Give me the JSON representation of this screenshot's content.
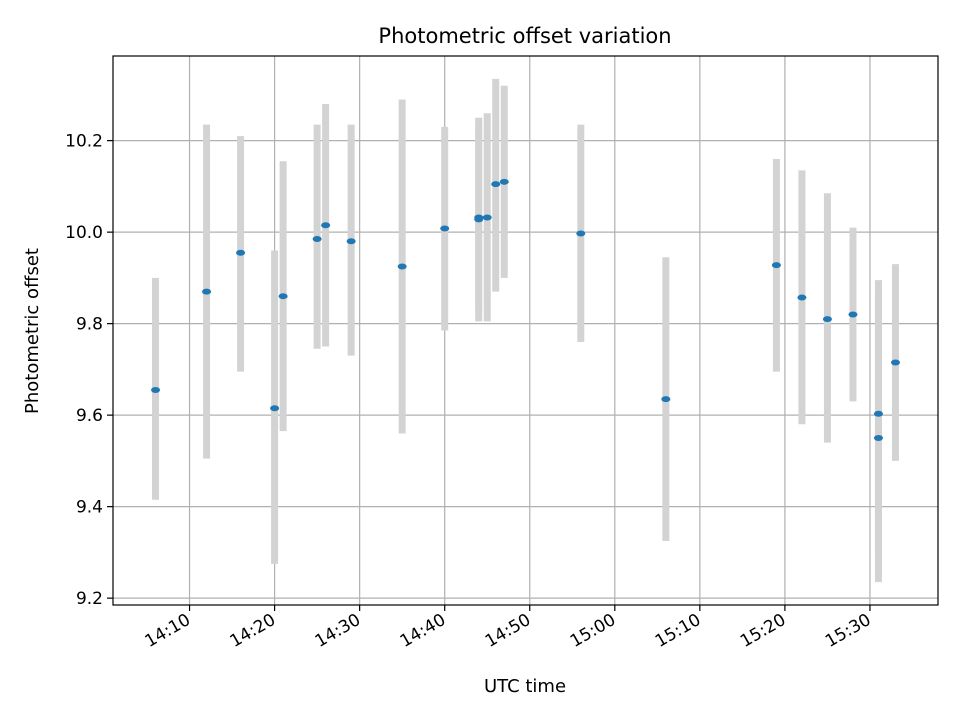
{
  "chart_data": {
    "type": "scatter",
    "title": "Photometric offset variation",
    "xlabel": "UTC time",
    "ylabel": "Photometric offset",
    "grid": true,
    "xlim": [
      "14:01",
      "15:38"
    ],
    "ylim": [
      9.185,
      10.385
    ],
    "x_ticks": [
      "14:10",
      "14:20",
      "14:30",
      "14:40",
      "14:50",
      "15:00",
      "15:10",
      "15:20",
      "15:30"
    ],
    "y_ticks": [
      "9.2",
      "9.4",
      "9.6",
      "9.8",
      "10.0",
      "10.2"
    ],
    "marker_color": "#1f77b4",
    "errorbar_color": "#d3d3d3",
    "points": [
      {
        "x": "14:06",
        "y": 9.655,
        "lo": 9.415,
        "hi": 9.9
      },
      {
        "x": "14:12",
        "y": 9.87,
        "lo": 9.505,
        "hi": 10.235
      },
      {
        "x": "14:16",
        "y": 9.955,
        "lo": 9.695,
        "hi": 10.21
      },
      {
        "x": "14:20",
        "y": 9.615,
        "lo": 9.275,
        "hi": 9.96
      },
      {
        "x": "14:21",
        "y": 9.86,
        "lo": 9.565,
        "hi": 10.155
      },
      {
        "x": "14:25",
        "y": 9.985,
        "lo": 9.745,
        "hi": 10.235
      },
      {
        "x": "14:26",
        "y": 10.015,
        "lo": 9.75,
        "hi": 10.28
      },
      {
        "x": "14:29",
        "y": 9.98,
        "lo": 9.73,
        "hi": 10.235
      },
      {
        "x": "14:35",
        "y": 9.925,
        "lo": 9.56,
        "hi": 10.29
      },
      {
        "x": "14:40",
        "y": 10.008,
        "lo": 9.785,
        "hi": 10.23
      },
      {
        "x": "14:44",
        "y": 10.032,
        "lo": 9.83,
        "hi": 10.235
      },
      {
        "x": "14:44",
        "y": 10.028,
        "lo": 9.805,
        "hi": 10.25
      },
      {
        "x": "14:45",
        "y": 10.032,
        "lo": 9.805,
        "hi": 10.26
      },
      {
        "x": "14:46",
        "y": 10.105,
        "lo": 9.87,
        "hi": 10.335
      },
      {
        "x": "14:47",
        "y": 10.11,
        "lo": 9.9,
        "hi": 10.32
      },
      {
        "x": "14:56",
        "y": 9.997,
        "lo": 9.76,
        "hi": 10.235
      },
      {
        "x": "15:06",
        "y": 9.635,
        "lo": 9.325,
        "hi": 9.945
      },
      {
        "x": "15:19",
        "y": 9.928,
        "lo": 9.695,
        "hi": 10.16
      },
      {
        "x": "15:22",
        "y": 9.857,
        "lo": 9.58,
        "hi": 10.135
      },
      {
        "x": "15:25",
        "y": 9.81,
        "lo": 9.54,
        "hi": 10.085
      },
      {
        "x": "15:28",
        "y": 9.82,
        "lo": 9.63,
        "hi": 10.01
      },
      {
        "x": "15:31",
        "y": 9.55,
        "lo": 9.235,
        "hi": 9.86
      },
      {
        "x": "15:31",
        "y": 9.603,
        "lo": 9.31,
        "hi": 9.895
      },
      {
        "x": "15:33",
        "y": 9.715,
        "lo": 9.5,
        "hi": 9.93
      }
    ]
  }
}
